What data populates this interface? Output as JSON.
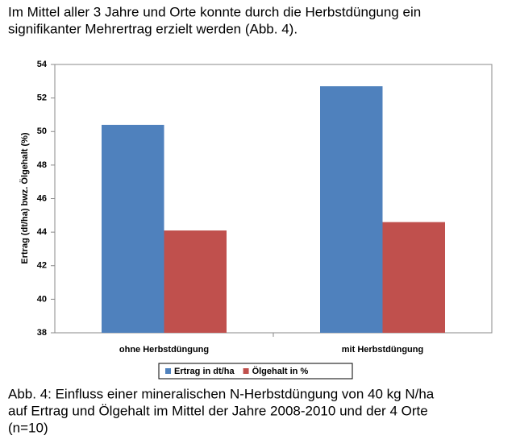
{
  "intro": [
    "Im Mittel aller 3 Jahre und Orte konnte durch die Herbstdüngung ein",
    "signifikanter Mehrertrag erzielt werden (Abb. 4)."
  ],
  "chart_data": {
    "type": "bar",
    "y_label": "Ertrag (dt/ha) bwz. Ölgehalt (%)",
    "categories": [
      "ohne Herbstdüngung",
      "mit Herbstdüngung"
    ],
    "series": [
      {
        "name": "Ertrag in dt/ha",
        "color": "#4f81bd",
        "values": [
          50.4,
          52.7
        ]
      },
      {
        "name": "Ölgehalt in %",
        "color": "#c0504d",
        "values": [
          44.1,
          44.6
        ]
      }
    ],
    "ylim": [
      38,
      54
    ],
    "yticks": [
      38,
      40,
      42,
      44,
      46,
      48,
      50,
      52,
      54
    ],
    "grid": false,
    "legend": "bottom"
  },
  "caption": [
    "Abb. 4: Einfluss einer mineralischen N-Herbstdüngung von 40 kg N/ha",
    "auf Ertrag und Ölgehalt im Mittel der Jahre 2008-2010 und der 4 Orte",
    "(n=10)"
  ]
}
